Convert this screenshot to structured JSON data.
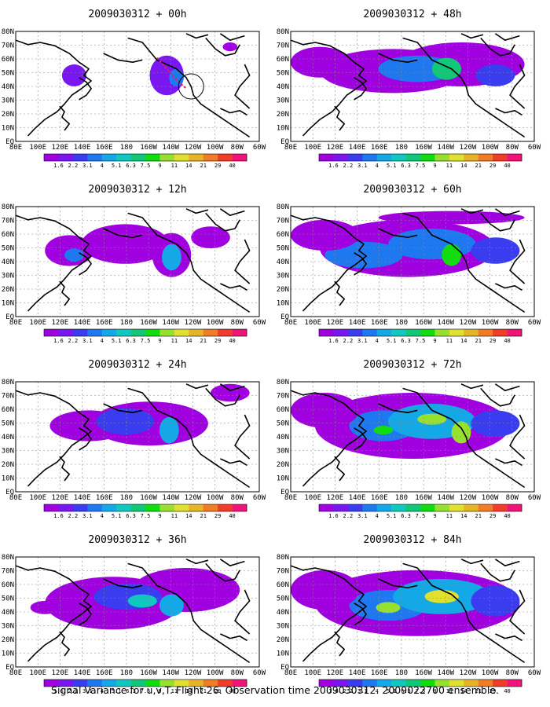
{
  "caption": "Signal Variance for u,v,T. Flight 26. Observation time 2009030312. 2009022700 ensemble.",
  "lat_labels": [
    "80N",
    "70N",
    "60N",
    "50N",
    "40N",
    "30N",
    "20N",
    "10N",
    "EQ"
  ],
  "lon_labels": [
    "80E",
    "100E",
    "120E",
    "140E",
    "160E",
    "180",
    "160W",
    "140W",
    "120W",
    "100W",
    "80W",
    "60W"
  ],
  "colorbar": {
    "labels": [
      "1.6",
      "2.2",
      "3.1",
      "4",
      "5.1",
      "6.3",
      "7.5",
      "9",
      "11",
      "14",
      "21",
      "29",
      "40"
    ],
    "colors": [
      "#a000e0",
      "#7a16f0",
      "#3a3cf0",
      "#1e78f0",
      "#14a8e6",
      "#10c8c0",
      "#10c878",
      "#10dc10",
      "#98e030",
      "#e0e030",
      "#e6b428",
      "#f07c28",
      "#f03c28",
      "#f01478"
    ]
  },
  "panels": [
    {
      "title": "2009030312 + 00h",
      "col": 0,
      "row": 0,
      "level": 0
    },
    {
      "title": "2009030312 + 48h",
      "col": 1,
      "row": 0,
      "level": 4
    },
    {
      "title": "2009030312 + 12h",
      "col": 0,
      "row": 1,
      "level": 1
    },
    {
      "title": "2009030312 + 60h",
      "col": 1,
      "row": 1,
      "level": 5
    },
    {
      "title": "2009030312 + 24h",
      "col": 0,
      "row": 2,
      "level": 2
    },
    {
      "title": "2009030312 + 72h",
      "col": 1,
      "row": 2,
      "level": 6
    },
    {
      "title": "2009030312 + 36h",
      "col": 0,
      "row": 3,
      "level": 3
    },
    {
      "title": "2009030312 + 84h",
      "col": 1,
      "row": 3,
      "level": 7
    }
  ]
}
